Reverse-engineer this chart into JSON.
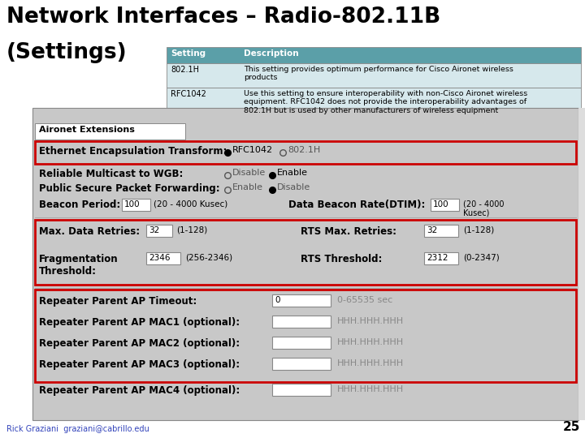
{
  "title_line1": "Network Interfaces – Radio-802.11B",
  "title_line2": "(Settings)",
  "bg_color": "#FFFFFF",
  "title_color": "#000000",
  "table_header_bg": "#5B9FA8",
  "table_header_color": "#FFFFFF",
  "table_cell_bg": "#D6E8EC",
  "table_border_color": "#888888",
  "red_border_color": "#CC0000",
  "form_bg": "#C8C8C8",
  "input_bg": "#FFFFFF",
  "footer_text": "Rick Graziani  graziani@cabrillo.edu",
  "footer_page": "25",
  "section1_label": "Aironet Extensions",
  "row_ethernet": "Ethernet Encapsulation Transform:",
  "row_multicast": "Reliable Multicast to WGB:",
  "row_public": "Public Secure Packet Forwarding:",
  "row_beacon": "Beacon Period:",
  "row_data_beacon": "Data Beacon Rate(DTIM):",
  "row_max_retries": "Max. Data Retries:",
  "row_rts_retries": "RTS Max. Retries:",
  "row_rts_thresh": "RTS Threshold:",
  "row_timeout": "Repeater Parent AP Timeout:",
  "row_mac1": "Repeater Parent AP MAC1 (optional):",
  "row_mac2": "Repeater Parent AP MAC2 (optional):",
  "row_mac3": "Repeater Parent AP MAC3 (optional):",
  "row_mac4": "Repeater Parent AP MAC4 (optional):"
}
